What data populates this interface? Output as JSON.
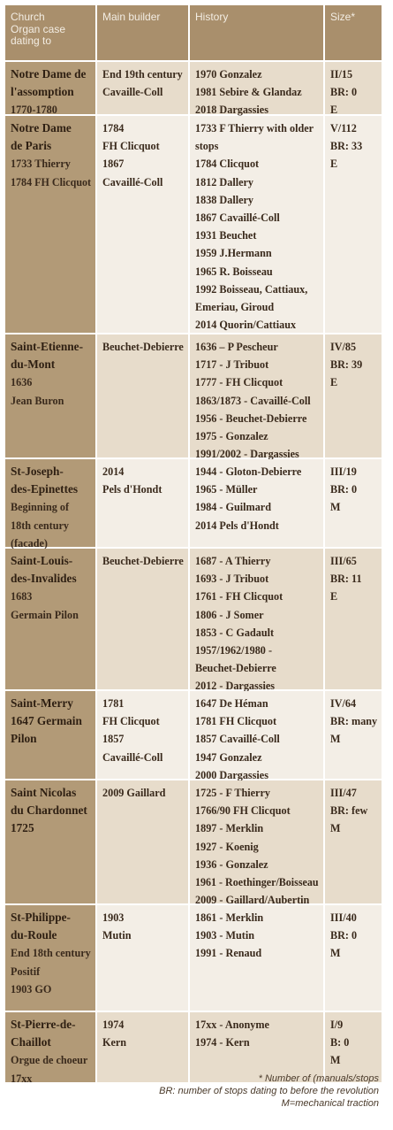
{
  "header": {
    "church": [
      "Church",
      "Organ case",
      "dating to"
    ],
    "builder": "Main builder",
    "history": "History",
    "size": "Size*"
  },
  "rows": [
    {
      "church_name": [
        "Notre Dame de",
        "l'assomption"
      ],
      "church_extra": [
        "1770-1780"
      ],
      "builder": [
        "End 19th century",
        "Cavaille-Coll"
      ],
      "history": [
        "1970 Gonzalez",
        "1981 Sebire & Glandaz",
        "2018 Dargassies"
      ],
      "size": [
        "II/15",
        "BR: 0",
        "E"
      ]
    },
    {
      "church_name": [
        "Notre Dame",
        "de Paris"
      ],
      "church_extra": [
        "1733 Thierry",
        "1784 FH Clicquot"
      ],
      "builder": [
        "1784",
        "FH Clicquot",
        "1867",
        "Cavaillé-Coll"
      ],
      "history": [
        "1733 F Thierry with older",
        "stops",
        "1784 Clicquot",
        "1812 Dallery",
        "1838 Dallery",
        "1867 Cavaillé-Coll",
        "1931 Beuchet",
        "1959 J.Hermann",
        "1965 R. Boisseau",
        "1992 Boisseau, Cattiaux,",
        "Emeriau, Giroud",
        "2014 Quorin/Cattiaux"
      ],
      "size": [
        "V/112",
        "BR: 33",
        "E"
      ]
    },
    {
      "church_name": [
        "Saint-Etienne-",
        "du-Mont"
      ],
      "church_extra": [
        "1636",
        "Jean Buron"
      ],
      "builder": [
        "Beuchet-Debierre"
      ],
      "history": [
        "1636 – P Pescheur",
        "1717 - J Tribuot",
        "1777 - FH Clicquot",
        "1863/1873 - Cavaillé-Coll",
        "1956 - Beuchet-Debierre",
        "1975 - Gonzalez",
        "1991/2002 - Dargassies"
      ],
      "size": [
        "IV/85",
        "BR: 39",
        "E"
      ]
    },
    {
      "church_name": [
        "St-Joseph-",
        "des-Epinettes"
      ],
      "church_extra": [
        "Beginning of",
        "18th century",
        "(facade)"
      ],
      "builder": [
        "2014",
        "Pels d'Hondt"
      ],
      "history": [
        "1944 - Gloton-Debierre",
        "1965 - Müller",
        "1984 - Guilmard",
        "2014 Pels d'Hondt"
      ],
      "size": [
        "III/19",
        "BR: 0",
        "M"
      ]
    },
    {
      "church_name": [
        "Saint-Louis-",
        "des-Invalides"
      ],
      "church_extra": [
        "1683",
        "Germain Pilon"
      ],
      "builder": [
        "Beuchet-Debierre"
      ],
      "history": [
        "1687 - A Thierry",
        "1693 - J Tribuot",
        "1761 - FH Clicquot",
        "1806 - J Somer",
        "1853 - C Gadault",
        "1957/1962/1980 -",
        "Beuchet-Debierre",
        "2012 - Dargassies"
      ],
      "size": [
        "III/65",
        "BR: 11",
        "E"
      ]
    },
    {
      "church_name": [
        "Saint-Merry",
        "1647 Germain",
        "Pilon"
      ],
      "church_extra": [],
      "builder": [
        "1781",
        "FH Clicquot",
        "1857",
        "Cavaillé-Coll"
      ],
      "history": [
        "1647 De Héman",
        "1781 FH Clicquot",
        "1857 Cavaillé-Coll",
        "1947 Gonzalez",
        "2000 Dargassies"
      ],
      "size": [
        "IV/64",
        "BR: many",
        "M"
      ]
    },
    {
      "church_name": [
        "Saint Nicolas",
        "du Chardonnet",
        "1725"
      ],
      "church_extra": [],
      "builder": [
        "2009 Gaillard"
      ],
      "history": [
        "1725 - F Thierry",
        "1766/90 FH Clicquot",
        "1897 - Merklin",
        "1927 - Koenig",
        "1936 - Gonzalez",
        "1961 - Roethinger/Boisseau",
        "2009 - Gaillard/Aubertin"
      ],
      "size": [
        "III/47",
        "BR: few",
        "M"
      ]
    },
    {
      "church_name": [
        "St-Philippe-",
        "du-Roule"
      ],
      "church_extra": [
        "End 18th century",
        "Positif",
        "1903 GO"
      ],
      "builder": [
        "1903",
        "Mutin"
      ],
      "history": [
        "1861 - Merklin",
        "1903 - Mutin",
        "1991 - Renaud"
      ],
      "size": [
        "III/40",
        "BR: 0",
        "M"
      ]
    },
    {
      "church_name": [
        "St-Pierre-de-",
        "Chaillot"
      ],
      "church_extra": [
        "Orgue de choeur",
        "17xx"
      ],
      "builder": [
        "1974",
        "Kern"
      ],
      "history": [
        "17xx - Anonyme",
        "1974 - Kern"
      ],
      "size": [
        "I/9",
        "B: 0",
        "M"
      ]
    }
  ],
  "notes": [
    "* Number of (manuals/stops",
    "BR: number of stops dating to before the revolution",
    "M=mechanical traction"
  ]
}
